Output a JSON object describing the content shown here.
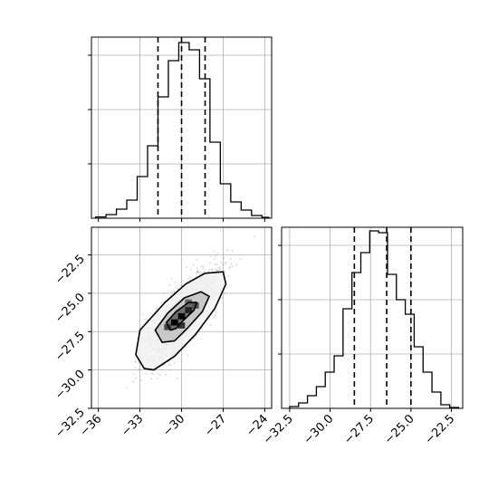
{
  "chart_data": {
    "type": "corner",
    "grid": true,
    "panels": [
      {
        "name": "hist-param-1",
        "type": "bar",
        "style": "step",
        "xlim": [
          -36.5,
          -23.5
        ],
        "ylim": [
          0,
          1
        ],
        "quantiles": [
          -31.7,
          -30.0,
          -28.3
        ],
        "bin_edges": [
          -36.2,
          -35.45,
          -34.7,
          -33.95,
          -33.2,
          -32.45,
          -31.7,
          -30.95,
          -30.2,
          -29.45,
          -28.7,
          -27.95,
          -27.2,
          -26.45,
          -25.7,
          -24.95,
          -24.2,
          -23.7
        ],
        "values": [
          0.007,
          0.02,
          0.05,
          0.1,
          0.23,
          0.4,
          0.67,
          0.87,
          0.97,
          0.93,
          0.77,
          0.42,
          0.19,
          0.09,
          0.045,
          0.015,
          0.005
        ],
        "xticks": [
          -36,
          -33,
          -30,
          -27,
          -24
        ],
        "xtick_labels": [
          "",
          "",
          "",
          "",
          ""
        ]
      },
      {
        "name": "scatter-2d",
        "type": "scatter",
        "xlim": [
          -36.5,
          -23.5
        ],
        "ylim": [
          -32.5,
          -20.7
        ],
        "xticks": [
          -36,
          -33,
          -30,
          -27,
          -24
        ],
        "xtick_labels": [
          "−36",
          "−33",
          "−30",
          "−27",
          "−24"
        ],
        "yticks": [
          -22.5,
          -25.0,
          -27.5,
          -30.0,
          -32.5
        ],
        "ytick_labels": [
          "−22.5",
          "−25.0",
          "−27.5",
          "−30.0",
          "−32.5"
        ],
        "center": [
          -30.0,
          -26.5
        ],
        "correlation": 0.8,
        "contours": [
          {
            "level": 0.9,
            "points": [
              [
                -32.7,
                -29.9
              ],
              [
                -33.3,
                -29.0
              ],
              [
                -33.0,
                -27.4
              ],
              [
                -31.2,
                -25.6
              ],
              [
                -29.7,
                -24.4
              ],
              [
                -28.3,
                -23.7
              ],
              [
                -27.0,
                -23.6
              ],
              [
                -26.8,
                -24.4
              ],
              [
                -27.6,
                -26.0
              ],
              [
                -29.0,
                -27.7
              ],
              [
                -30.5,
                -29.1
              ],
              [
                -32.0,
                -30.0
              ]
            ]
          },
          {
            "level": 0.6,
            "points": [
              [
                -31.4,
                -28.2
              ],
              [
                -31.9,
                -27.4
              ],
              [
                -31.0,
                -26.3
              ],
              [
                -29.8,
                -25.3
              ],
              [
                -28.6,
                -24.9
              ],
              [
                -28.0,
                -25.2
              ],
              [
                -28.5,
                -26.2
              ],
              [
                -29.6,
                -27.3
              ],
              [
                -30.5,
                -28.1
              ]
            ]
          },
          {
            "level": 0.3,
            "points": [
              [
                -30.8,
                -27.4
              ],
              [
                -31.1,
                -26.9
              ],
              [
                -30.4,
                -26.2
              ],
              [
                -29.5,
                -25.6
              ],
              [
                -28.9,
                -25.6
              ],
              [
                -29.1,
                -26.1
              ],
              [
                -29.9,
                -26.8
              ],
              [
                -30.4,
                -27.3
              ]
            ]
          }
        ]
      },
      {
        "name": "hist-param-2",
        "type": "bar",
        "style": "step",
        "xlim": [
          -33.0,
          -21.8
        ],
        "ylim": [
          0,
          1
        ],
        "quantiles": [
          -28.5,
          -26.5,
          -25.0
        ],
        "bin_edges": [
          -32.5,
          -31.95,
          -31.4,
          -30.85,
          -30.3,
          -29.75,
          -29.2,
          -28.65,
          -28.1,
          -27.55,
          -27.0,
          -26.45,
          -25.9,
          -25.35,
          -24.8,
          -24.25,
          -23.7,
          -23.15,
          -22.6,
          -22.05
        ],
        "values": [
          0.01,
          0.03,
          0.07,
          0.12,
          0.2,
          0.29,
          0.55,
          0.75,
          0.86,
          0.98,
          0.97,
          0.74,
          0.6,
          0.52,
          0.34,
          0.2,
          0.09,
          0.02,
          0.005
        ],
        "xticks": [
          -32.5,
          -30.0,
          -27.5,
          -25.0,
          -22.5
        ],
        "xtick_labels": [
          "−32.5",
          "−30.0",
          "−27.5",
          "−25.0",
          "−22.5"
        ]
      }
    ]
  }
}
